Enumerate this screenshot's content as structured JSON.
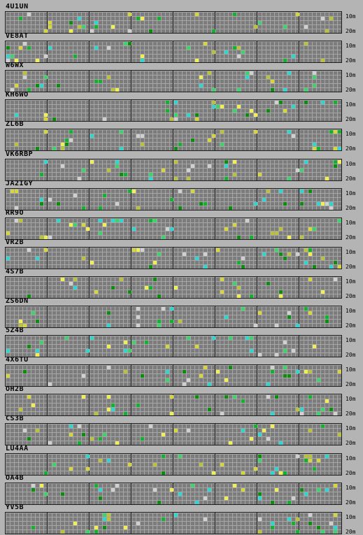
{
  "bands": {
    "top": "10m",
    "bottom": "20m"
  },
  "colors": {
    "grid_bg": "#7c7c7c",
    "grid_line": "#a6a6a6",
    "separator": "#151515",
    "signal_palette": [
      "#d6d63a",
      "#f0ef54",
      "#3ed36a",
      "#13b22e",
      "#2fd6d0",
      "#d0d0d0",
      "#0e8c10",
      "#b9c23a"
    ]
  },
  "stations": [
    {
      "callsign": "4U1UN"
    },
    {
      "callsign": "VE8AT"
    },
    {
      "callsign": "W6WX"
    },
    {
      "callsign": "KH6WO"
    },
    {
      "callsign": "ZL6B"
    },
    {
      "callsign": "VK6RBP"
    },
    {
      "callsign": "JA2IGY"
    },
    {
      "callsign": "RR9O"
    },
    {
      "callsign": "VR2B"
    },
    {
      "callsign": "4S7B"
    },
    {
      "callsign": "ZS6DN"
    },
    {
      "callsign": "5Z4B"
    },
    {
      "callsign": "4X6TU"
    },
    {
      "callsign": "OH2B"
    },
    {
      "callsign": "CS3B"
    },
    {
      "callsign": "LU4AA"
    },
    {
      "callsign": "OA4B"
    },
    {
      "callsign": "YV5B"
    }
  ]
}
